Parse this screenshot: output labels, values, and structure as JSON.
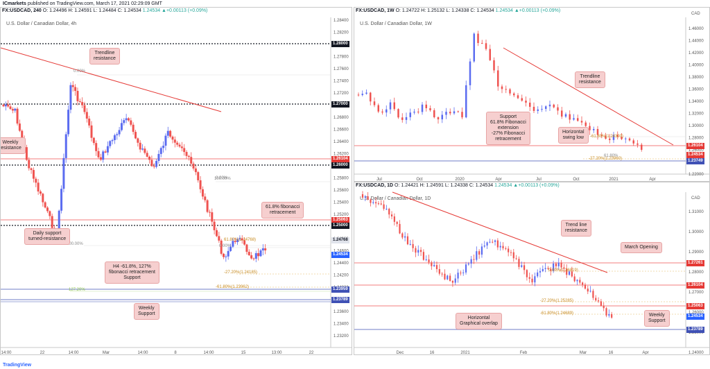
{
  "header": {
    "author": "ICmarkets",
    "published": "published on TradingView.com, March 17, 2021 02:29:09 GMT"
  },
  "left": {
    "symbol": "FX:USDCAD, 240",
    "o": "O: 1.24496",
    "h": "H: 1.24591",
    "l": "L: 1.24484",
    "c": "C: 1.24534",
    "chg": "1.24534 ▲+0.00113 (+0.09%)",
    "title": "U.S. Dollar / Canadian Dollar, 4h",
    "price_labels": [
      "1.28400",
      "1.28200",
      "1.28000",
      "1.27800",
      "1.27600",
      "1.27400",
      "1.27200",
      "1.27000",
      "1.26800",
      "1.26600",
      "1.26400",
      "1.26200",
      "1.26000",
      "1.25800",
      "1.25600",
      "1.25400",
      "1.25200",
      "1.25000",
      "1.24800",
      "1.24600",
      "1.24400",
      "1.24200",
      "1.24000",
      "1.23800",
      "1.23600",
      "1.23400",
      "1.23200"
    ],
    "time_labels": [
      "14:00",
      "22",
      "14:00",
      "Mar",
      "14:00",
      "8",
      "14:00",
      "15",
      "13:00",
      "22"
    ],
    "tags": [
      {
        "t": "1.28000",
        "c": "#131722"
      },
      {
        "t": "1.27000",
        "c": "#131722"
      },
      {
        "t": "1.26104",
        "c": "#e53935"
      },
      {
        "t": "1.26000",
        "c": "#131722"
      },
      {
        "t": "1.25063",
        "c": "#e53935"
      },
      {
        "t": "1.25000",
        "c": "#131722"
      },
      {
        "t": "1.24768",
        "c": "#e0e3eb"
      },
      {
        "t": "1.24534",
        "c": "#2962ff"
      },
      {
        "t": "1.23959",
        "c": "#3f51b5"
      },
      {
        "t": "1.23789",
        "c": "#3f51b5"
      }
    ],
    "fib": [
      "0.00%",
      "100.00%",
      "0.00%",
      "100.00%",
      "61.80%(1.24768)",
      "0.00%",
      "-27.20%(1.24185)",
      "-61.80%(1.23962)",
      "127.20%"
    ],
    "ann": [
      "Trendline\nresistance",
      "Weekly\nresistance",
      "61.8% fibonacci\nretracement",
      "Daily support\nturned-resistance",
      "H4 -61.8%, 127%\nfibonacci retracement\nSupport",
      "Weekly\nSupport"
    ]
  },
  "right_top": {
    "symbol": "FX:USDCAD, 1W",
    "o": "O: 1.24722",
    "h": "H: 1.25132",
    "l": "L: 1.24338",
    "c": "C: 1.24534",
    "chg": "1.24534 ▲+0.00113 (+0.09%)",
    "title": "U.S. Dollar / Canadian Dollar, 1W",
    "price_labels": [
      "1.46000",
      "1.44000",
      "1.42000",
      "1.40000",
      "1.38000",
      "1.36000",
      "1.34000",
      "1.32000",
      "1.30000",
      "1.28000",
      "1.26000",
      "1.24000",
      "1.22000"
    ],
    "cur": "CAD",
    "time_labels": [
      "Jul",
      "Oct",
      "2020",
      "Apr",
      "Jul",
      "Oct",
      "2021",
      "Apr"
    ],
    "tags": [
      {
        "t": "1.26104",
        "c": "#e53935"
      },
      {
        "t": "1.24534",
        "c": "#e53935"
      },
      {
        "t": "1.23749",
        "c": "#3f51b5"
      }
    ],
    "fib": [
      "-61.80%(1.24300)",
      "-27.20%(1.23960)",
      "61.80%"
    ],
    "ann": [
      "Trendline\nresistance",
      "Support\n61.8% Fibonacci\nextension\n-27% Fibonacci\nretracement",
      "Horizontal\nswing low"
    ]
  },
  "right_bot": {
    "symbol": "FX:USDCAD, 1D",
    "o": "O: 1.24421",
    "h": "H: 1.24591",
    "l": "L: 1.24338",
    "c": "C: 1.24534",
    "chg": "1.24534 ▲+0.00113 (+0.09%)",
    "title": "U.S. Dollar / Canadian Dollar, 1D",
    "price_labels": [
      "1.31000",
      "1.30000",
      "1.29000",
      "1.28000",
      "1.27000",
      "1.26000",
      "1.25000",
      "1.24000"
    ],
    "cur": "CAD",
    "time_labels": [
      "Dec",
      "16",
      "2021",
      "Feb",
      "Mar",
      "16",
      "Apr"
    ],
    "tags": [
      {
        "t": "1.27261",
        "c": "#e53935"
      },
      {
        "t": "1.26104",
        "c": "#e53935"
      },
      {
        "t": "1.25063",
        "c": "#e53935"
      },
      {
        "t": "1.24534",
        "c": "#2962ff"
      },
      {
        "t": "1.23789",
        "c": "#3f51b5"
      }
    ],
    "fib": [
      "0.00%(1.26819)",
      "-27.20%(1.25285)",
      "-61.80%(1.24689)"
    ],
    "ann": [
      "Trend line\nresistance",
      "March Opening",
      "Horizontal\nGraphical overlap",
      "Weekly\nSupport"
    ]
  },
  "footer": "TradingView"
}
